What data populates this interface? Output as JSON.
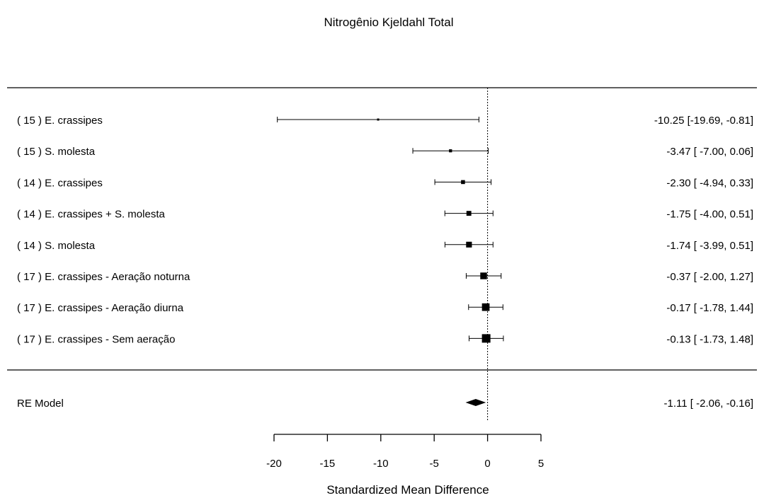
{
  "chart_data": {
    "type": "forest",
    "title": "Nitrogênio Kjeldahl Total",
    "xlabel": "Standardized Mean Difference",
    "xlim": [
      -20,
      5
    ],
    "xticks": [
      -20,
      -15,
      -10,
      -5,
      0,
      5
    ],
    "xtick_labels": [
      "-20",
      "-15",
      "-10",
      "-5",
      "0",
      "5"
    ],
    "reference_line": 0,
    "studies": [
      {
        "label": "( 15 ) E. crassipes",
        "estimate": -10.25,
        "ci_low": -19.69,
        "ci_high": -0.81,
        "text": "-10.25 [-19.69, -0.81]"
      },
      {
        "label": "( 15 ) S. molesta",
        "estimate": -3.47,
        "ci_low": -7.0,
        "ci_high": 0.06,
        "text": "-3.47 [ -7.00,  0.06]"
      },
      {
        "label": "( 14 ) E. crassipes",
        "estimate": -2.3,
        "ci_low": -4.94,
        "ci_high": 0.33,
        "text": "-2.30 [ -4.94,  0.33]"
      },
      {
        "label": "( 14 ) E. crassipes + S. molesta",
        "estimate": -1.75,
        "ci_low": -4.0,
        "ci_high": 0.51,
        "text": "-1.75 [ -4.00,  0.51]"
      },
      {
        "label": "( 14 ) S. molesta",
        "estimate": -1.74,
        "ci_low": -3.99,
        "ci_high": 0.51,
        "text": "-1.74 [ -3.99,  0.51]"
      },
      {
        "label": "( 17 ) E. crassipes - Aeração noturna",
        "estimate": -0.37,
        "ci_low": -2.0,
        "ci_high": 1.27,
        "text": "-0.37 [ -2.00,  1.27]"
      },
      {
        "label": "( 17 ) E. crassipes - Aeração diurna",
        "estimate": -0.17,
        "ci_low": -1.78,
        "ci_high": 1.44,
        "text": "-0.17 [ -1.78,  1.44]"
      },
      {
        "label": "( 17 ) E. crassipes - Sem aeração",
        "estimate": -0.13,
        "ci_low": -1.73,
        "ci_high": 1.48,
        "text": "-0.13 [ -1.73,  1.48]"
      }
    ],
    "summary": {
      "label": "RE Model",
      "estimate": -1.11,
      "ci_low": -2.06,
      "ci_high": -0.16,
      "text": "-1.11 [ -2.06, -0.16]"
    }
  }
}
